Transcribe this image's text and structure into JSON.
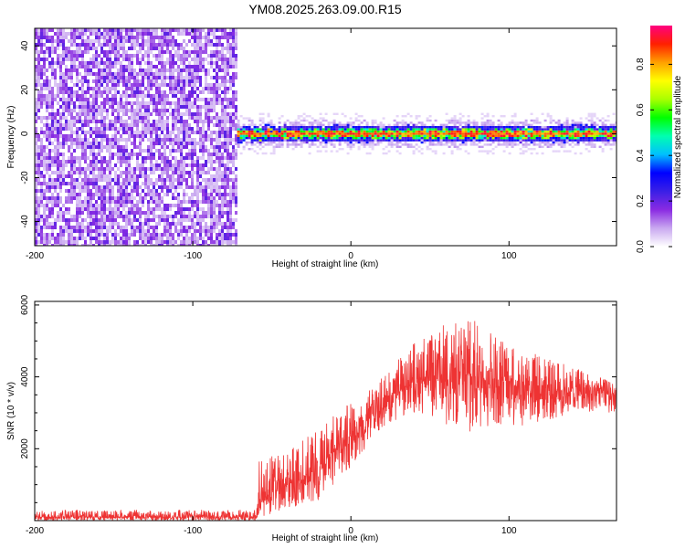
{
  "title": "YM08.2025.263.09.00.R15",
  "chart_data": [
    {
      "type": "heatmap",
      "xlabel": "Height of straight line (km)",
      "ylabel": "Frequency (Hz)",
      "xlim": [
        -200,
        168
      ],
      "ylim": [
        -51,
        48
      ],
      "xticks": [
        -200,
        -100,
        0,
        100
      ],
      "yticks": [
        -40,
        -20,
        0,
        20,
        40
      ],
      "noise_region_x": [
        -200,
        -72
      ],
      "signal": {
        "x_start": -72,
        "x_end": 168,
        "center_frequency": 0,
        "half_width": 4
      },
      "colorbar": {
        "label": "Normalized spectral amplitude",
        "range": [
          0,
          0.97
        ],
        "ticks": [
          0.0,
          0.2,
          0.4,
          0.6,
          0.8
        ],
        "colormap": [
          "#ffffff",
          "#c9a8f0",
          "#8a2be2",
          "#3a1fe6",
          "#0000ff",
          "#00c0ff",
          "#00ffb0",
          "#00ff00",
          "#aaff00",
          "#ffff00",
          "#ffa000",
          "#ff2000",
          "#ff0080"
        ]
      }
    },
    {
      "type": "line",
      "xlabel": "Height of straight line (km)",
      "ylabel": "SNR (10 * v/v)",
      "xlim": [
        -200,
        168
      ],
      "ylim": [
        0,
        6100
      ],
      "xticks": [
        -200,
        -100,
        0,
        100
      ],
      "yticks": [
        2000,
        4000,
        6000
      ],
      "color": "#ee3333",
      "series_envelope": [
        {
          "x": -200,
          "low": 0,
          "mid": 100,
          "high": 300
        },
        {
          "x": -60,
          "low": 0,
          "mid": 100,
          "high": 300
        },
        {
          "x": -58,
          "low": 50,
          "mid": 600,
          "high": 1700
        },
        {
          "x": -40,
          "low": 300,
          "mid": 1000,
          "high": 1900
        },
        {
          "x": -20,
          "low": 600,
          "mid": 1500,
          "high": 2600
        },
        {
          "x": 0,
          "low": 1500,
          "mid": 2400,
          "high": 3300
        },
        {
          "x": 20,
          "low": 2600,
          "mid": 3200,
          "high": 4000
        },
        {
          "x": 40,
          "low": 3000,
          "mid": 3900,
          "high": 5000
        },
        {
          "x": 60,
          "low": 2600,
          "mid": 4000,
          "high": 5500
        },
        {
          "x": 80,
          "low": 2400,
          "mid": 4000,
          "high": 5600
        },
        {
          "x": 100,
          "low": 2600,
          "mid": 3900,
          "high": 4900
        },
        {
          "x": 120,
          "low": 2700,
          "mid": 3700,
          "high": 4600
        },
        {
          "x": 140,
          "low": 3000,
          "mid": 3600,
          "high": 4300
        },
        {
          "x": 168,
          "low": 3000,
          "mid": 3500,
          "high": 3800
        }
      ]
    }
  ]
}
